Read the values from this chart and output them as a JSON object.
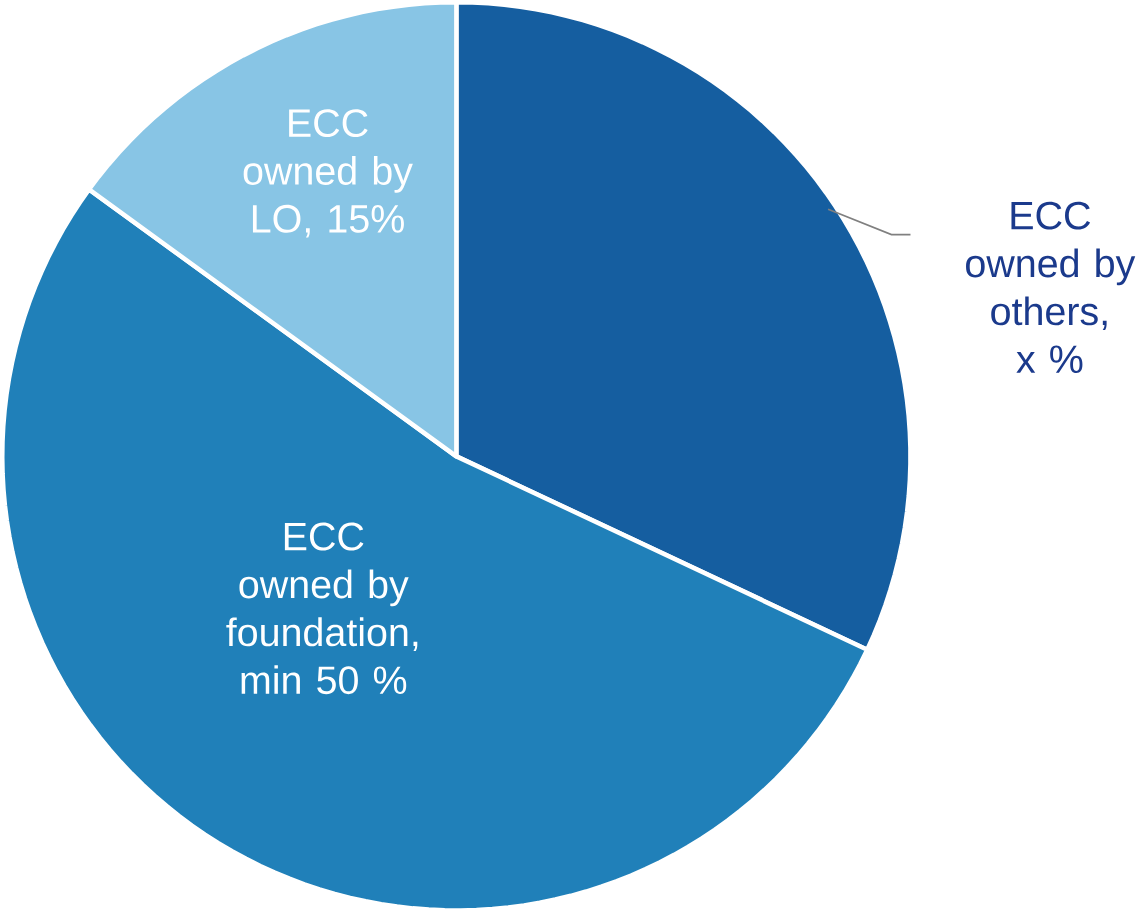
{
  "chart_data": {
    "type": "pie",
    "categories": [
      "ECC owned by others, x %",
      "ECC owned by foundation, min 50 %",
      "ECC owned by LO, 15%"
    ],
    "values": [
      32,
      53,
      15
    ],
    "colors": [
      "#155ea0",
      "#2080b9",
      "#88c5e5"
    ]
  }
}
